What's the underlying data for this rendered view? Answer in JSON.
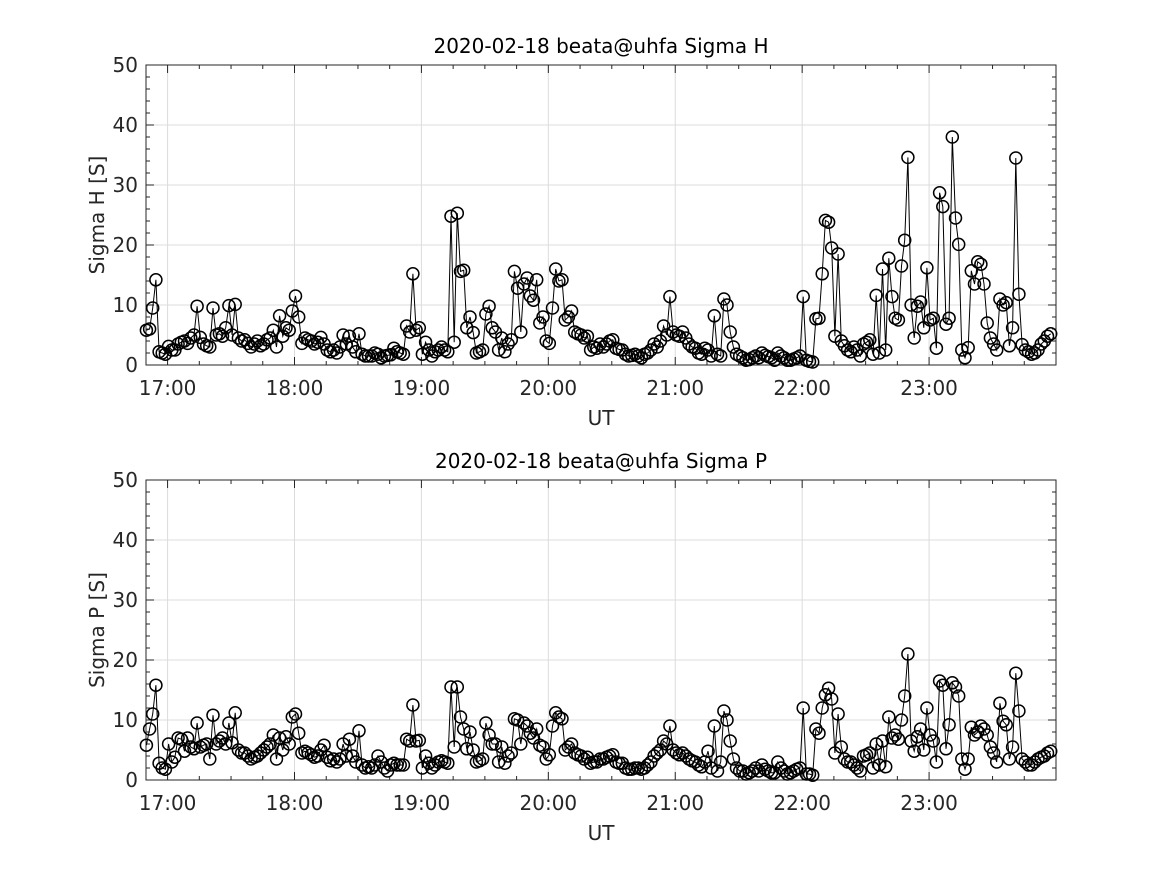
{
  "chart_data": [
    {
      "type": "line",
      "title": "2020-02-18  beata@uhfa Sigma H",
      "xlabel": "UT",
      "ylabel": "Sigma H [S]",
      "xlim_hours": [
        16.83,
        24.0
      ],
      "ylim": [
        0,
        50
      ],
      "yticks": [
        0,
        10,
        20,
        30,
        40,
        50
      ],
      "xticks": [
        {
          "value": 17,
          "label": "17:00"
        },
        {
          "value": 18,
          "label": "18:00"
        },
        {
          "value": 19,
          "label": "19:00"
        },
        {
          "value": 20,
          "label": "20:00"
        },
        {
          "value": 21,
          "label": "21:00"
        },
        {
          "value": 22,
          "label": "22:00"
        },
        {
          "value": 23,
          "label": "23:00"
        }
      ],
      "grid": true,
      "marker": "circle",
      "x_start_hour": 16.833,
      "x_step_hours": 0.025,
      "values": [
        5.8,
        6.0,
        9.5,
        14.2,
        2.2,
        2.0,
        1.8,
        3.1,
        2.5,
        2.5,
        3.5,
        3.8,
        4.0,
        3.6,
        4.5,
        5.0,
        9.8,
        4.6,
        3.5,
        3.2,
        3.0,
        9.5,
        5.0,
        5.2,
        4.8,
        6.2,
        9.9,
        5.0,
        10.1,
        4.5,
        4.0,
        4.2,
        3.6,
        3.0,
        3.5,
        4.0,
        3.2,
        3.5,
        4.2,
        4.5,
        5.8,
        3.0,
        8.2,
        4.8,
        6.2,
        5.8,
        9.0,
        11.5,
        8.0,
        3.6,
        4.5,
        4.2,
        4.0,
        3.5,
        3.8,
        4.6,
        3.5,
        2.5,
        2.2,
        2.5,
        2.0,
        3.0,
        5.0,
        3.5,
        4.8,
        3.0,
        2.2,
        5.2,
        1.8,
        1.5,
        1.5,
        1.5,
        2.0,
        1.8,
        1.2,
        1.5,
        1.6,
        1.7,
        2.8,
        2.2,
        2.0,
        1.8,
        6.5,
        5.5,
        15.2,
        5.8,
        6.2,
        1.8,
        3.8,
        2.5,
        1.5,
        2.2,
        2.5,
        3.0,
        2.5,
        2.2,
        24.8,
        3.8,
        25.3,
        15.6,
        15.8,
        6.2,
        8.0,
        5.4,
        2.0,
        2.2,
        2.5,
        8.5,
        9.8,
        6.2,
        5.5,
        2.5,
        4.5,
        2.2,
        3.5,
        4.2,
        15.6,
        12.8,
        5.5,
        13.5,
        14.5,
        11.5,
        10.8,
        14.2,
        7.0,
        8.0,
        4.0,
        3.6,
        9.5,
        16.0,
        14.0,
        14.2,
        7.5,
        8.0,
        9.0,
        5.5,
        5.2,
        5.0,
        4.5,
        4.8,
        2.5,
        3.0,
        2.8,
        3.5,
        3.0,
        3.5,
        4.0,
        4.2,
        2.8,
        2.6,
        2.5,
        1.8,
        1.5,
        1.6,
        1.8,
        1.5,
        1.2,
        1.8,
        2.0,
        2.5,
        3.5,
        3.0,
        4.0,
        6.5,
        5.0,
        11.4,
        5.5,
        5.0,
        4.8,
        5.5,
        4.5,
        3.5,
        3.0,
        2.8,
        2.0,
        1.8,
        2.8,
        2.5,
        1.5,
        8.2,
        1.8,
        1.5,
        11.0,
        10.0,
        5.5,
        3.0,
        1.8,
        1.5,
        1.2,
        0.8,
        0.9,
        1.2,
        1.5,
        1.2,
        2.0,
        1.6,
        1.4,
        1.2,
        0.8,
        2.0,
        1.5,
        1.2,
        0.8,
        0.8,
        1.0,
        1.2,
        1.5,
        11.4,
        0.8,
        0.6,
        0.5,
        7.7,
        7.8,
        15.2,
        24.1,
        23.8,
        19.5,
        4.8,
        18.5,
        4.0,
        3.2,
        2.5,
        2.2,
        3.0,
        2.5,
        1.5,
        3.5,
        3.8,
        4.2,
        1.8,
        11.6,
        2.0,
        16.0,
        2.5,
        17.8,
        11.4,
        7.8,
        7.5,
        16.5,
        20.8,
        34.6,
        10.0,
        4.5,
        9.8,
        10.5,
        6.2,
        16.2,
        7.5,
        7.8,
        2.8,
        28.7,
        26.4,
        6.8,
        7.8,
        38.0,
        24.5,
        20.1,
        2.5,
        1.2,
        2.9,
        15.7,
        13.5,
        17.2,
        16.8,
        13.5,
        7.0,
        4.5,
        3.5,
        2.5,
        11.0,
        10.0,
        10.4,
        3.2,
        6.2,
        34.5,
        11.8,
        3.4,
        2.5,
        2.2,
        1.8,
        2.0,
        2.5,
        3.5,
        4.0,
        4.8,
        5.2
      ]
    },
    {
      "type": "line",
      "title": "2020-02-18  beata@uhfa Sigma P",
      "xlabel": "UT",
      "ylabel": "Sigma P [S]",
      "xlim_hours": [
        16.83,
        24.0
      ],
      "ylim": [
        0,
        50
      ],
      "yticks": [
        0,
        10,
        20,
        30,
        40,
        50
      ],
      "xticks": [
        {
          "value": 17,
          "label": "17:00"
        },
        {
          "value": 18,
          "label": "18:00"
        },
        {
          "value": 19,
          "label": "19:00"
        },
        {
          "value": 20,
          "label": "20:00"
        },
        {
          "value": 21,
          "label": "21:00"
        },
        {
          "value": 22,
          "label": "22:00"
        },
        {
          "value": 23,
          "label": "23:00"
        }
      ],
      "grid": true,
      "marker": "circle",
      "x_start_hour": 16.833,
      "x_step_hours": 0.025,
      "values": [
        5.8,
        8.5,
        11.0,
        15.8,
        2.8,
        2.0,
        1.8,
        6.0,
        3.0,
        3.8,
        7.0,
        6.8,
        4.8,
        7.0,
        5.5,
        5.2,
        9.5,
        5.5,
        5.8,
        6.0,
        3.5,
        10.8,
        6.0,
        6.5,
        7.0,
        6.0,
        9.5,
        6.2,
        11.2,
        5.0,
        4.5,
        4.5,
        4.0,
        3.5,
        3.8,
        4.0,
        4.5,
        5.0,
        5.5,
        6.0,
        7.5,
        3.5,
        7.0,
        5.0,
        7.2,
        6.0,
        10.5,
        11.0,
        7.8,
        4.5,
        4.8,
        4.5,
        4.2,
        3.8,
        4.0,
        5.0,
        5.8,
        3.8,
        3.2,
        3.5,
        3.0,
        3.5,
        6.0,
        4.0,
        6.8,
        4.0,
        3.0,
        8.2,
        2.5,
        2.0,
        2.2,
        2.0,
        2.5,
        4.0,
        3.0,
        2.0,
        1.5,
        2.5,
        2.8,
        2.5,
        2.5,
        2.5,
        6.8,
        6.5,
        12.5,
        6.5,
        6.6,
        2.0,
        4.0,
        2.8,
        2.0,
        2.5,
        3.0,
        3.2,
        3.0,
        2.8,
        15.5,
        5.5,
        15.5,
        10.5,
        8.5,
        5.2,
        8.0,
        5.0,
        3.0,
        3.2,
        3.5,
        9.5,
        7.5,
        6.0,
        6.0,
        3.0,
        5.5,
        2.8,
        4.0,
        4.5,
        10.2,
        10.0,
        6.0,
        9.5,
        9.0,
        7.8,
        7.0,
        8.5,
        5.8,
        5.5,
        3.5,
        4.2,
        9.0,
        11.2,
        10.5,
        10.2,
        5.0,
        5.5,
        6.0,
        4.5,
        4.2,
        4.0,
        3.5,
        3.8,
        2.8,
        3.0,
        3.0,
        3.5,
        3.5,
        3.8,
        4.0,
        4.2,
        3.0,
        2.8,
        2.8,
        2.0,
        1.8,
        1.8,
        2.0,
        2.0,
        1.8,
        2.0,
        2.5,
        3.0,
        4.0,
        4.5,
        5.0,
        6.5,
        6.0,
        9.0,
        5.0,
        4.5,
        4.2,
        4.5,
        4.0,
        3.5,
        3.2,
        3.0,
        2.5,
        2.2,
        3.0,
        4.8,
        2.0,
        9.0,
        1.5,
        3.0,
        11.5,
        10.0,
        6.5,
        3.5,
        2.0,
        1.5,
        1.5,
        1.0,
        1.2,
        1.5,
        2.0,
        1.5,
        2.5,
        1.8,
        1.5,
        1.2,
        1.2,
        3.0,
        2.0,
        1.5,
        1.0,
        1.2,
        1.5,
        1.8,
        2.0,
        12.0,
        1.0,
        1.0,
        0.8,
        8.5,
        7.8,
        12.0,
        14.2,
        15.3,
        13.5,
        4.5,
        11.0,
        5.5,
        3.5,
        3.0,
        3.0,
        2.5,
        2.0,
        1.5,
        4.0,
        4.2,
        4.5,
        2.0,
        6.0,
        2.5,
        6.5,
        2.2,
        10.5,
        7.0,
        7.5,
        6.8,
        10.0,
        14.0,
        21.0,
        6.5,
        4.8,
        7.2,
        8.5,
        5.0,
        12.0,
        7.5,
        6.5,
        3.0,
        16.5,
        15.8,
        5.2,
        9.2,
        16.2,
        15.5,
        14.0,
        3.5,
        1.8,
        3.5,
        8.8,
        7.5,
        8.0,
        9.0,
        8.5,
        7.5,
        5.5,
        4.5,
        3.0,
        12.8,
        9.8,
        9.2,
        3.5,
        5.5,
        17.8,
        11.5,
        3.5,
        3.0,
        2.5,
        2.5,
        3.0,
        3.5,
        3.8,
        4.0,
        4.5,
        4.8
      ]
    }
  ]
}
